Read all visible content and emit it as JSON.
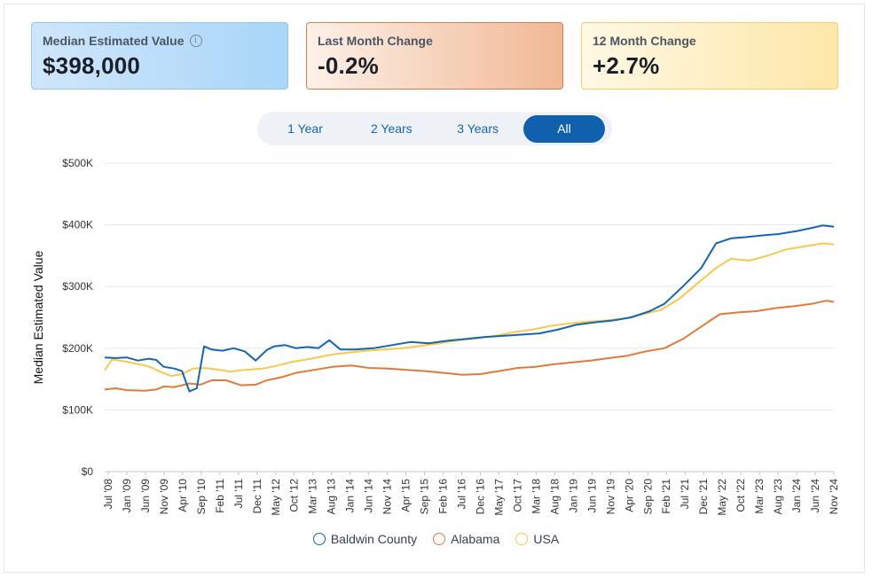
{
  "cards": [
    {
      "label": "Median Estimated Value",
      "value": "$398,000",
      "info_icon": "info-icon"
    },
    {
      "label": "Last Month Change",
      "value": "-0.2%"
    },
    {
      "label": "12 Month Change",
      "value": "+2.7%"
    }
  ],
  "range_buttons": [
    "1 Year",
    "2 Years",
    "3 Years",
    "All"
  ],
  "active_range": "All",
  "chart_data": {
    "type": "line",
    "ylabel": "Median Estimated Value",
    "xlabel": "",
    "ylim": [
      0,
      500000
    ],
    "y_ticks": [
      "$0",
      "$100K",
      "$200K",
      "$300K",
      "$400K",
      "$500K"
    ],
    "x_ticks": [
      "Jul '08",
      "Jan '09",
      "Jun '09",
      "Nov '09",
      "Apr '10",
      "Sep '10",
      "Feb '11",
      "Jul '11",
      "Dec '11",
      "May '12",
      "Oct '12",
      "Mar '13",
      "Aug '13",
      "Jan '14",
      "Jun '14",
      "Nov '14",
      "Apr '15",
      "Sep '15",
      "Feb '16",
      "Jul '16",
      "Dec '16",
      "May '17",
      "Oct '17",
      "Mar '18",
      "Aug '18",
      "Jan '19",
      "Jun '19",
      "Nov '19",
      "Apr '20",
      "Sep '20",
      "Feb '21",
      "Jul '21",
      "Dec '21",
      "May '22",
      "Oct '22",
      "Mar '23",
      "Aug '23",
      "Jan '24",
      "Jun '24",
      "Nov '24"
    ],
    "x_range": [
      "2008-07",
      "2025-01"
    ],
    "grid": true,
    "legend_position": "bottom",
    "series": [
      {
        "name": "Baldwin County",
        "color": "#1565b0",
        "points": [
          [
            "2008-07",
            185000
          ],
          [
            "2008-10",
            184000
          ],
          [
            "2009-01",
            185000
          ],
          [
            "2009-04",
            180000
          ],
          [
            "2009-07",
            183000
          ],
          [
            "2009-09",
            181000
          ],
          [
            "2009-11",
            170000
          ],
          [
            "2010-02",
            167000
          ],
          [
            "2010-04",
            163000
          ],
          [
            "2010-06",
            130000
          ],
          [
            "2010-08",
            135000
          ],
          [
            "2010-10",
            203000
          ],
          [
            "2010-12",
            198000
          ],
          [
            "2011-03",
            196000
          ],
          [
            "2011-06",
            200000
          ],
          [
            "2011-09",
            195000
          ],
          [
            "2011-12",
            180000
          ],
          [
            "2012-03",
            197000
          ],
          [
            "2012-05",
            203000
          ],
          [
            "2012-08",
            205000
          ],
          [
            "2012-11",
            200000
          ],
          [
            "2013-02",
            202000
          ],
          [
            "2013-05",
            200000
          ],
          [
            "2013-08",
            213000
          ],
          [
            "2013-11",
            198000
          ],
          [
            "2014-03",
            198000
          ],
          [
            "2014-08",
            200000
          ],
          [
            "2015-01",
            205000
          ],
          [
            "2015-06",
            210000
          ],
          [
            "2015-11",
            208000
          ],
          [
            "2016-04",
            212000
          ],
          [
            "2016-09",
            215000
          ],
          [
            "2017-02",
            218000
          ],
          [
            "2017-07",
            220000
          ],
          [
            "2017-12",
            222000
          ],
          [
            "2018-05",
            224000
          ],
          [
            "2018-10",
            230000
          ],
          [
            "2019-03",
            238000
          ],
          [
            "2019-08",
            242000
          ],
          [
            "2020-01",
            245000
          ],
          [
            "2020-06",
            250000
          ],
          [
            "2020-11",
            260000
          ],
          [
            "2021-03",
            272000
          ],
          [
            "2021-08",
            300000
          ],
          [
            "2022-01",
            330000
          ],
          [
            "2022-05",
            370000
          ],
          [
            "2022-09",
            378000
          ],
          [
            "2023-01",
            380000
          ],
          [
            "2023-06",
            383000
          ],
          [
            "2023-10",
            385000
          ],
          [
            "2024-03",
            390000
          ],
          [
            "2024-07",
            395000
          ],
          [
            "2024-10",
            399000
          ],
          [
            "2025-01",
            397000
          ]
        ]
      },
      {
        "name": "Alabama",
        "color": "#e07a3a",
        "points": [
          [
            "2008-07",
            133000
          ],
          [
            "2008-10",
            135000
          ],
          [
            "2009-01",
            132000
          ],
          [
            "2009-06",
            131000
          ],
          [
            "2009-09",
            133000
          ],
          [
            "2009-11",
            138000
          ],
          [
            "2010-02",
            137000
          ],
          [
            "2010-06",
            143000
          ],
          [
            "2010-09",
            141000
          ],
          [
            "2010-12",
            148000
          ],
          [
            "2011-04",
            148000
          ],
          [
            "2011-08",
            140000
          ],
          [
            "2011-12",
            141000
          ],
          [
            "2012-03",
            148000
          ],
          [
            "2012-07",
            153000
          ],
          [
            "2012-11",
            160000
          ],
          [
            "2013-04",
            165000
          ],
          [
            "2013-09",
            170000
          ],
          [
            "2014-02",
            172000
          ],
          [
            "2014-07",
            168000
          ],
          [
            "2014-12",
            167000
          ],
          [
            "2015-05",
            165000
          ],
          [
            "2015-10",
            163000
          ],
          [
            "2016-03",
            160000
          ],
          [
            "2016-08",
            157000
          ],
          [
            "2017-01",
            158000
          ],
          [
            "2017-06",
            163000
          ],
          [
            "2017-11",
            168000
          ],
          [
            "2018-04",
            170000
          ],
          [
            "2018-09",
            174000
          ],
          [
            "2019-02",
            177000
          ],
          [
            "2019-07",
            180000
          ],
          [
            "2019-12",
            184000
          ],
          [
            "2020-05",
            188000
          ],
          [
            "2020-10",
            195000
          ],
          [
            "2021-03",
            200000
          ],
          [
            "2021-08",
            215000
          ],
          [
            "2022-01",
            235000
          ],
          [
            "2022-06",
            255000
          ],
          [
            "2022-11",
            258000
          ],
          [
            "2023-04",
            260000
          ],
          [
            "2023-09",
            265000
          ],
          [
            "2024-02",
            268000
          ],
          [
            "2024-07",
            272000
          ],
          [
            "2024-11",
            277000
          ],
          [
            "2025-01",
            275000
          ]
        ]
      },
      {
        "name": "USA",
        "color": "#f8c84f",
        "points": [
          [
            "2008-07",
            164000
          ],
          [
            "2008-09",
            182000
          ],
          [
            "2009-01",
            178000
          ],
          [
            "2009-06",
            172000
          ],
          [
            "2009-08",
            168000
          ],
          [
            "2009-10",
            162000
          ],
          [
            "2010-01",
            155000
          ],
          [
            "2010-04",
            158000
          ],
          [
            "2010-07",
            167000
          ],
          [
            "2010-10",
            168000
          ],
          [
            "2011-01",
            166000
          ],
          [
            "2011-05",
            162000
          ],
          [
            "2011-09",
            165000
          ],
          [
            "2012-02",
            167000
          ],
          [
            "2012-06",
            172000
          ],
          [
            "2012-10",
            178000
          ],
          [
            "2013-03",
            183000
          ],
          [
            "2013-08",
            189000
          ],
          [
            "2014-01",
            193000
          ],
          [
            "2014-06",
            196000
          ],
          [
            "2014-11",
            198000
          ],
          [
            "2015-04",
            200000
          ],
          [
            "2015-09",
            204000
          ],
          [
            "2016-02",
            208000
          ],
          [
            "2016-07",
            213000
          ],
          [
            "2016-12",
            216000
          ],
          [
            "2017-05",
            220000
          ],
          [
            "2017-10",
            226000
          ],
          [
            "2018-03",
            230000
          ],
          [
            "2018-08",
            236000
          ],
          [
            "2019-01",
            240000
          ],
          [
            "2019-06",
            243000
          ],
          [
            "2019-11",
            245000
          ],
          [
            "2020-04",
            248000
          ],
          [
            "2020-09",
            255000
          ],
          [
            "2021-02",
            262000
          ],
          [
            "2021-07",
            280000
          ],
          [
            "2021-12",
            305000
          ],
          [
            "2022-05",
            330000
          ],
          [
            "2022-09",
            345000
          ],
          [
            "2023-02",
            342000
          ],
          [
            "2023-07",
            350000
          ],
          [
            "2023-12",
            360000
          ],
          [
            "2024-05",
            365000
          ],
          [
            "2024-10",
            370000
          ],
          [
            "2025-01",
            368000
          ]
        ]
      }
    ]
  }
}
